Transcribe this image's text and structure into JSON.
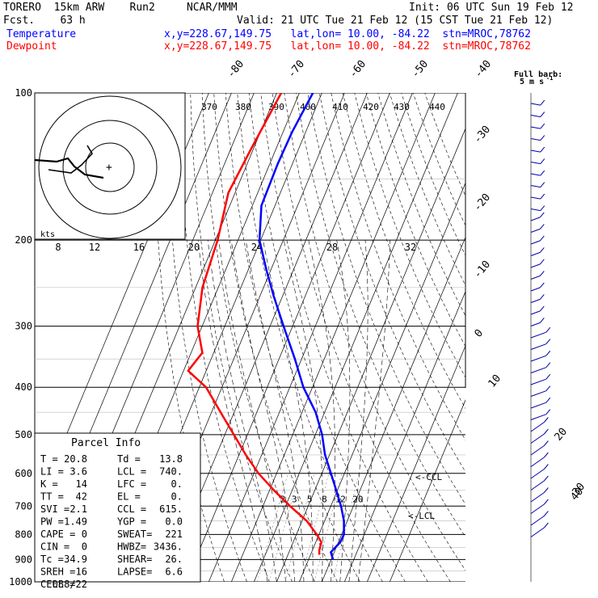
{
  "header": {
    "model_line": "TORERO  15km ARW    Run2     NCAR/MMM",
    "fcst_line": "Fcst.    63 h",
    "init_line": "Init: 06 UTC Sun 19 Feb 12",
    "valid_line": "Valid: 21 UTC Tue 21 Feb 12 (15 CST Tue 21 Feb 12)",
    "temp_label": "Temperature",
    "dew_label": "Dewpoint",
    "temp_loc": "x,y=228.67,149.75   lat,lon= 10.00, -84.22  stn=MROC,78762",
    "dew_loc": "x,y=228.67,149.75   lat,lon= 10.00, -84.22  stn=MROC,78762",
    "full_barb": "Full barb:",
    "full_barb_unit": "5 m s",
    "full_barb_exp": "-1"
  },
  "colors": {
    "temperature": "#0000ff",
    "dewpoint": "#ff0000",
    "axes": "#000000"
  },
  "chart_data": {
    "type": "line",
    "title": "",
    "ylabel": "",
    "pressure_levels": [
      "100",
      "200",
      "300",
      "400",
      "500",
      "600",
      "700",
      "800",
      "900",
      "1000"
    ],
    "mixing_ratio_labels": [
      "2",
      "3",
      "5",
      "8",
      "12",
      "20"
    ],
    "theta_labels": [
      "370",
      "380",
      "390",
      "400",
      "410",
      "420",
      "430",
      "440"
    ],
    "isotherm_labels_top": [
      "-80",
      "-70",
      "-60",
      "-50",
      "-40"
    ],
    "isotherm_labels_right": [
      "-30",
      "-20",
      "-10",
      "0",
      "10",
      "20",
      "30",
      "40"
    ],
    "series": [
      {
        "name": "Temperature",
        "points": [
          [
            100,
            -74
          ],
          [
            120,
            -76
          ],
          [
            140,
            -76.5
          ],
          [
            170,
            -76
          ],
          [
            200,
            -70.5
          ],
          [
            230,
            -62
          ],
          [
            260,
            -54
          ],
          [
            300,
            -44
          ],
          [
            350,
            -33
          ],
          [
            400,
            -24
          ],
          [
            450,
            -14
          ],
          [
            500,
            -7
          ],
          [
            550,
            -2
          ],
          [
            600,
            4
          ],
          [
            650,
            9.5
          ],
          [
            700,
            14.5
          ],
          [
            750,
            18.5
          ],
          [
            800,
            21
          ],
          [
            830,
            20.8
          ],
          [
            870,
            18.5
          ],
          [
            900,
            20.8
          ]
        ]
      },
      {
        "name": "Dewpoint",
        "points": [
          [
            100,
            -88
          ],
          [
            130,
            -91
          ],
          [
            160,
            -93
          ],
          [
            200,
            -89
          ],
          [
            250,
            -87
          ],
          [
            300,
            -82
          ],
          [
            340,
            -75
          ],
          [
            370,
            -78
          ],
          [
            400,
            -67
          ],
          [
            450,
            -56
          ],
          [
            500,
            -46
          ],
          [
            550,
            -37
          ],
          [
            600,
            -28
          ],
          [
            650,
            -18
          ],
          [
            700,
            -8
          ],
          [
            750,
            2
          ],
          [
            800,
            9
          ],
          [
            830,
            12.5
          ],
          [
            860,
            13
          ],
          [
            880,
            13.8
          ]
        ]
      }
    ],
    "hodograph": {
      "speed_labels": [
        "8",
        "12",
        "16",
        "20",
        "24",
        "28",
        "32"
      ],
      "unit": "kts"
    },
    "parcel_info": {
      "title": "Parcel Info",
      "rows": [
        [
          "T  =",
          "20.8",
          "Td =",
          "13.8"
        ],
        [
          "LI =",
          "3.6",
          "LCL =",
          "740."
        ],
        [
          "K  =",
          "14",
          "LFC =",
          "0."
        ],
        [
          "TT =",
          "42",
          "EL  =",
          "0."
        ],
        [
          "SVI =",
          "2.1",
          "CCL =",
          "615."
        ],
        [
          "PW =",
          "1.49",
          "YGP =",
          "0.0"
        ],
        [
          "CAPE =",
          "0",
          "SWEAT=",
          "221"
        ],
        [
          "CIN =",
          "0",
          "HWBZ=",
          "3436."
        ],
        [
          "Tc =",
          "34.9",
          "SHEAR=",
          "26."
        ],
        [
          "SREH =",
          "16",
          "LAPSE=",
          "6.6"
        ],
        [
          "CELL =",
          "088/22",
          "",
          ""
        ]
      ]
    },
    "annotations": {
      "ccl": "<-CCL",
      "lcl": "<-LCL",
      "kts": "kts"
    },
    "wind_barbs_count": 38
  }
}
